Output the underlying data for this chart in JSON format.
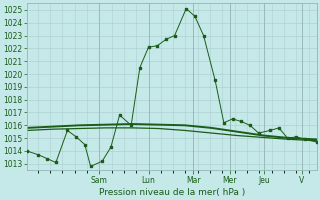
{
  "xlabel": "Pression niveau de la mer( hPa )",
  "background_color": "#c5e8e8",
  "grid_color": "#afd0d0",
  "line_color": "#1a5c1a",
  "yticks": [
    1013,
    1014,
    1015,
    1016,
    1017,
    1018,
    1019,
    1020,
    1021,
    1022,
    1023,
    1024,
    1025
  ],
  "ylim": [
    1012.5,
    1025.5
  ],
  "day_labels": [
    "Sam",
    "Lun",
    "Mar",
    "Mer",
    "Jeu",
    "V"
  ],
  "day_tick_x": [
    0.25,
    0.42,
    0.575,
    0.7,
    0.82,
    0.95
  ],
  "series1_x": [
    0,
    0.04,
    0.07,
    0.1,
    0.14,
    0.17,
    0.2,
    0.22,
    0.26,
    0.29,
    0.32,
    0.36,
    0.39,
    0.42,
    0.45,
    0.48,
    0.51,
    0.55,
    0.58,
    0.61,
    0.65,
    0.68,
    0.71,
    0.74,
    0.77,
    0.8,
    0.84,
    0.87,
    0.9,
    0.93,
    0.96,
    1.0
  ],
  "series1_y": [
    1014.0,
    1013.7,
    1013.4,
    1013.1,
    1015.6,
    1015.1,
    1014.5,
    1012.8,
    1013.2,
    1014.3,
    1016.8,
    1016.0,
    1020.5,
    1022.1,
    1022.2,
    1022.7,
    1023.0,
    1025.1,
    1024.5,
    1023.0,
    1019.5,
    1016.2,
    1016.5,
    1016.3,
    1016.0,
    1015.4,
    1015.6,
    1015.8,
    1015.0,
    1015.1,
    1014.9,
    1014.7
  ],
  "series2_y": [
    1015.8,
    1015.9,
    1016.0,
    1016.05,
    1016.1,
    1016.05,
    1016.0,
    1015.8,
    1015.5,
    1015.2,
    1015.0,
    1014.9
  ],
  "series3_y": [
    1015.6,
    1015.7,
    1015.75,
    1015.8,
    1015.8,
    1015.75,
    1015.6,
    1015.4,
    1015.2,
    1015.05,
    1014.9,
    1014.8
  ],
  "xlabel_fontsize": 6.5,
  "tick_fontsize": 5.5
}
